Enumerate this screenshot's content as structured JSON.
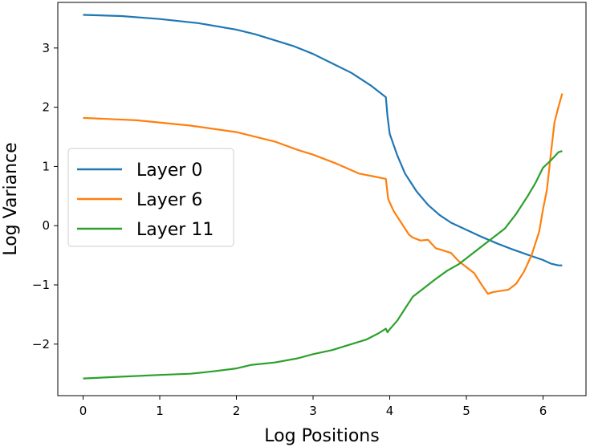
{
  "chart_data": {
    "type": "line",
    "title": "",
    "xlabel": "Log Positions",
    "ylabel": "Log Variance",
    "xlim": [
      -0.33,
      6.56
    ],
    "ylim": [
      -2.87,
      3.77
    ],
    "xticks": [
      0,
      1,
      2,
      3,
      4,
      5,
      6
    ],
    "yticks": [
      -2,
      -1,
      0,
      1,
      2,
      3
    ],
    "ytick_labels": [
      "−2",
      "−1",
      "0",
      "1",
      "2",
      "3"
    ],
    "grid": false,
    "legend_position": "center-left",
    "series": [
      {
        "name": "Layer 0",
        "color": "#1f77b4",
        "points": [
          [
            0.0,
            3.56
          ],
          [
            0.5,
            3.54
          ],
          [
            1.0,
            3.49
          ],
          [
            1.5,
            3.42
          ],
          [
            2.0,
            3.31
          ],
          [
            2.25,
            3.23
          ],
          [
            2.5,
            3.13
          ],
          [
            2.75,
            3.03
          ],
          [
            3.0,
            2.9
          ],
          [
            3.25,
            2.74
          ],
          [
            3.5,
            2.58
          ],
          [
            3.75,
            2.37
          ],
          [
            3.95,
            2.17
          ],
          [
            3.97,
            1.85
          ],
          [
            4.0,
            1.55
          ],
          [
            4.1,
            1.18
          ],
          [
            4.2,
            0.88
          ],
          [
            4.35,
            0.58
          ],
          [
            4.5,
            0.35
          ],
          [
            4.65,
            0.18
          ],
          [
            4.8,
            0.05
          ],
          [
            5.0,
            -0.07
          ],
          [
            5.2,
            -0.19
          ],
          [
            5.4,
            -0.3
          ],
          [
            5.6,
            -0.4
          ],
          [
            5.8,
            -0.49
          ],
          [
            6.0,
            -0.58
          ],
          [
            6.1,
            -0.64
          ],
          [
            6.2,
            -0.67
          ],
          [
            6.25,
            -0.67
          ]
        ]
      },
      {
        "name": "Layer 6",
        "color": "#ff7f0e",
        "points": [
          [
            0.0,
            1.82
          ],
          [
            0.7,
            1.78
          ],
          [
            1.4,
            1.69
          ],
          [
            2.0,
            1.58
          ],
          [
            2.5,
            1.42
          ],
          [
            2.8,
            1.28
          ],
          [
            3.0,
            1.2
          ],
          [
            3.3,
            1.05
          ],
          [
            3.6,
            0.88
          ],
          [
            3.8,
            0.83
          ],
          [
            3.95,
            0.79
          ],
          [
            3.98,
            0.45
          ],
          [
            4.05,
            0.25
          ],
          [
            4.15,
            0.05
          ],
          [
            4.25,
            -0.15
          ],
          [
            4.3,
            -0.2
          ],
          [
            4.4,
            -0.25
          ],
          [
            4.5,
            -0.24
          ],
          [
            4.6,
            -0.38
          ],
          [
            4.7,
            -0.42
          ],
          [
            4.8,
            -0.46
          ],
          [
            4.9,
            -0.6
          ],
          [
            5.0,
            -0.7
          ],
          [
            5.1,
            -0.8
          ],
          [
            5.2,
            -1.0
          ],
          [
            5.28,
            -1.15
          ],
          [
            5.35,
            -1.12
          ],
          [
            5.45,
            -1.1
          ],
          [
            5.55,
            -1.08
          ],
          [
            5.65,
            -0.98
          ],
          [
            5.75,
            -0.78
          ],
          [
            5.85,
            -0.5
          ],
          [
            5.95,
            -0.1
          ],
          [
            6.0,
            0.28
          ],
          [
            6.05,
            0.6
          ],
          [
            6.1,
            1.2
          ],
          [
            6.15,
            1.75
          ],
          [
            6.2,
            2.0
          ],
          [
            6.25,
            2.23
          ]
        ]
      },
      {
        "name": "Layer 11",
        "color": "#2ca02c",
        "points": [
          [
            0.0,
            -2.58
          ],
          [
            0.5,
            -2.55
          ],
          [
            1.0,
            -2.52
          ],
          [
            1.4,
            -2.5
          ],
          [
            1.7,
            -2.46
          ],
          [
            2.0,
            -2.41
          ],
          [
            2.2,
            -2.35
          ],
          [
            2.5,
            -2.31
          ],
          [
            2.8,
            -2.24
          ],
          [
            3.0,
            -2.17
          ],
          [
            3.25,
            -2.1
          ],
          [
            3.5,
            -2.0
          ],
          [
            3.7,
            -1.92
          ],
          [
            3.85,
            -1.82
          ],
          [
            3.95,
            -1.74
          ],
          [
            3.97,
            -1.8
          ],
          [
            4.0,
            -1.75
          ],
          [
            4.1,
            -1.6
          ],
          [
            4.2,
            -1.4
          ],
          [
            4.3,
            -1.2
          ],
          [
            4.45,
            -1.05
          ],
          [
            4.6,
            -0.9
          ],
          [
            4.75,
            -0.76
          ],
          [
            4.9,
            -0.65
          ],
          [
            5.05,
            -0.5
          ],
          [
            5.2,
            -0.35
          ],
          [
            5.35,
            -0.2
          ],
          [
            5.5,
            -0.05
          ],
          [
            5.65,
            0.2
          ],
          [
            5.8,
            0.5
          ],
          [
            5.9,
            0.72
          ],
          [
            6.0,
            0.98
          ],
          [
            6.1,
            1.1
          ],
          [
            6.2,
            1.24
          ],
          [
            6.25,
            1.26
          ]
        ]
      }
    ]
  }
}
